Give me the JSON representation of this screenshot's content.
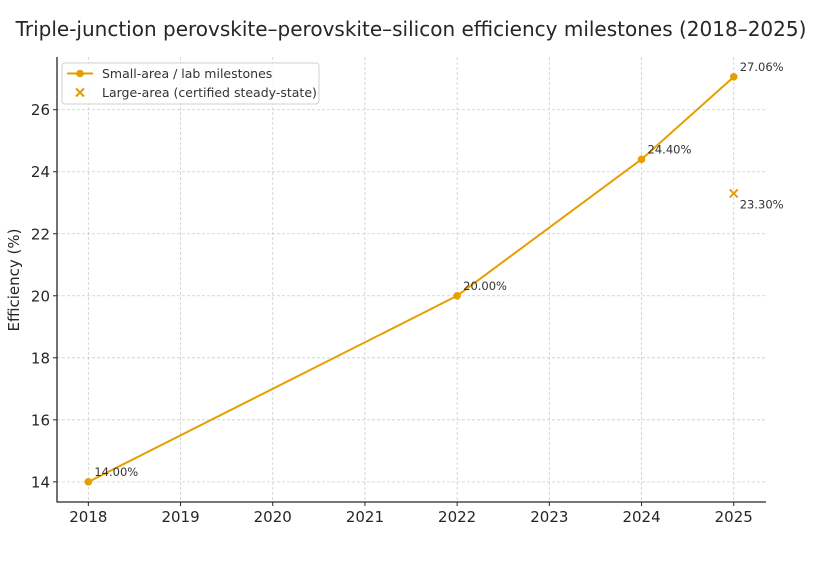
{
  "chart_data": {
    "type": "line",
    "title": "Triple-junction perovskite–perovskite–silicon efficiency milestones (2018–2025)",
    "xlabel": "",
    "ylabel": "Efficiency (%)",
    "xlim": [
      2017.66,
      2025.35
    ],
    "ylim": [
      13.35,
      27.7
    ],
    "x_ticks": [
      2018,
      2019,
      2020,
      2021,
      2022,
      2023,
      2024,
      2025
    ],
    "y_ticks": [
      14,
      16,
      18,
      20,
      22,
      24,
      26
    ],
    "grid": true,
    "legend_position": "top-left",
    "accent_color": "#E69F00",
    "series": [
      {
        "name": "Small-area / lab milestones",
        "marker": "circle",
        "line": true,
        "x": [
          2018,
          2022,
          2024,
          2025
        ],
        "y": [
          14.0,
          20.0,
          24.4,
          27.06
        ],
        "labels": [
          "14.00%",
          "20.00%",
          "24.40%",
          "27.06%"
        ]
      },
      {
        "name": "Large-area (certified steady-state)",
        "marker": "x",
        "line": false,
        "x": [
          2025
        ],
        "y": [
          23.3
        ],
        "labels": [
          "23.30%"
        ]
      }
    ]
  }
}
